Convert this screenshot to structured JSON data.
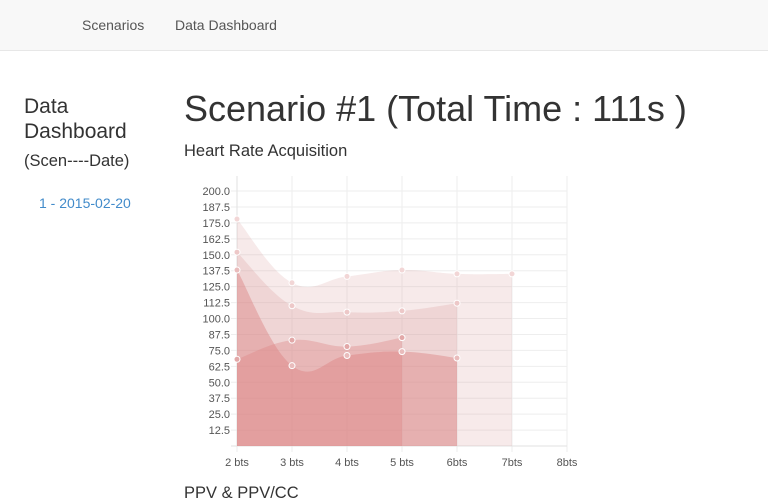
{
  "nav": {
    "items": [
      {
        "label": "Scenarios"
      },
      {
        "label": "Data Dashboard"
      }
    ]
  },
  "sidebar": {
    "title": "Data Dashboard",
    "subtitle": "(Scen----Date)",
    "scenarios": [
      {
        "label": "1 - 2015-02-20"
      }
    ]
  },
  "main": {
    "title": "Scenario #1 (Total Time : 111s )",
    "heart_rate_title": "Heart Rate Acquisition",
    "ppv_title": "PPV & PPV/CC"
  },
  "chart_data": {
    "type": "area",
    "categories": [
      "2 bts",
      "3 bts",
      "4 bts",
      "5 bts",
      "6bts",
      "7bts",
      "8bts"
    ],
    "y_ticks": [
      "200.0",
      "187.5",
      "175.0",
      "162.5",
      "150.0",
      "137.5",
      "125.0",
      "112.5",
      "100.0",
      "87.5",
      "75.0",
      "62.5",
      "50.0",
      "37.5",
      "25.0",
      "12.5"
    ],
    "ylim": [
      0,
      200
    ],
    "grid": true,
    "series": [
      {
        "values": [
          178,
          128,
          133,
          138,
          135,
          135,
          null
        ],
        "color": "rgba(215,150,150,0.2)",
        "point_color": "#f2d6d6"
      },
      {
        "values": [
          152,
          110,
          105,
          106,
          112,
          null,
          null
        ],
        "color": "rgba(215,150,150,0.25)",
        "point_color": "#edc8c8"
      },
      {
        "values": [
          138,
          63,
          71,
          74,
          69,
          null,
          null
        ],
        "color": "rgba(220,130,130,0.45)",
        "point_color": "#e9bcbc"
      },
      {
        "values": [
          68,
          83,
          78,
          85,
          null,
          null,
          null
        ],
        "color": "rgba(220,130,130,0.35)",
        "point_color": "#e2a8a8"
      }
    ]
  }
}
